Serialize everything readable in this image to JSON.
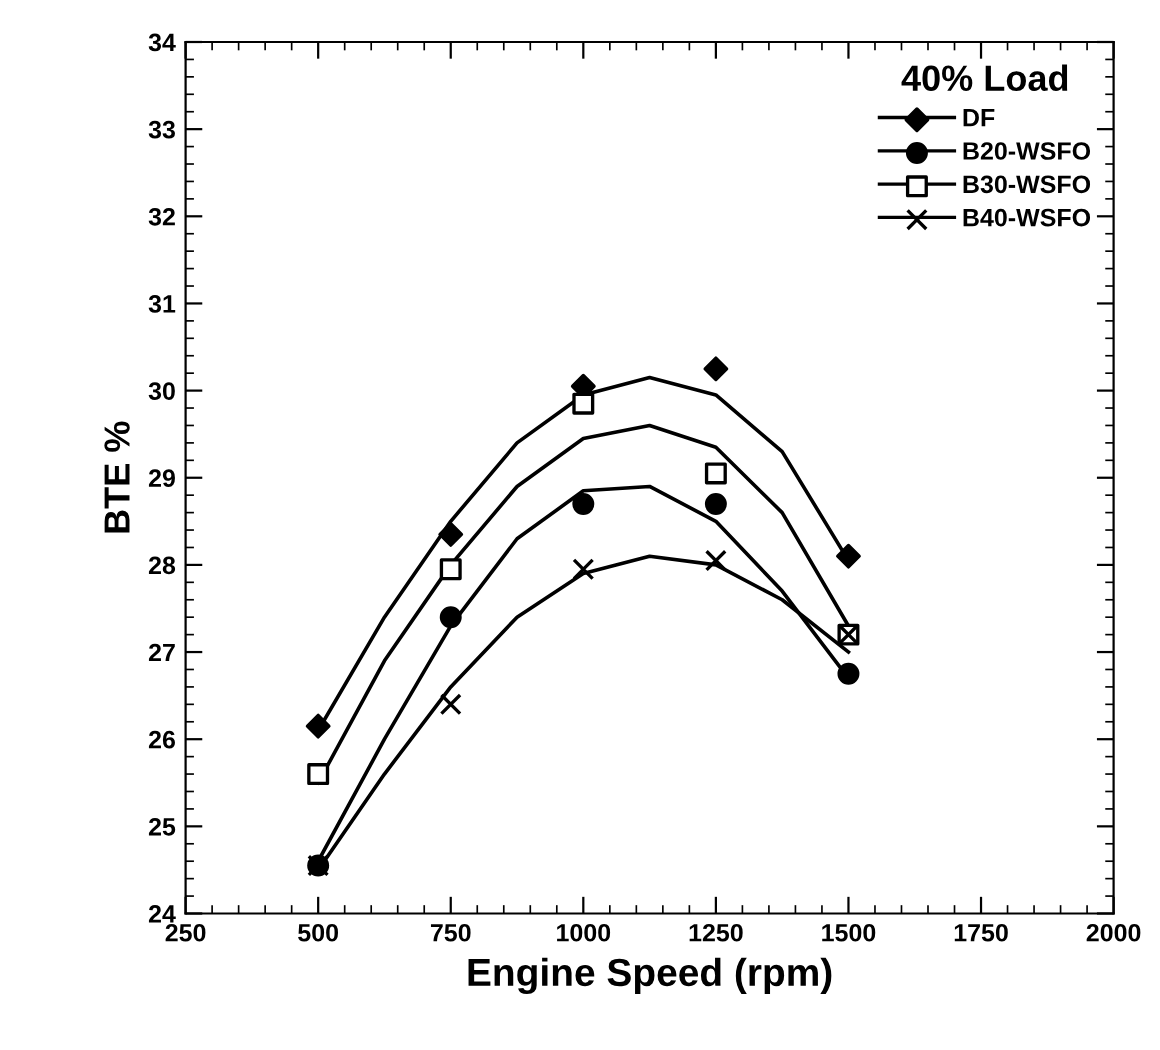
{
  "chart_data": {
    "type": "scatter",
    "xlabel": "Engine Speed (rpm)",
    "ylabel": "BTE %",
    "legend_title": "40% Load",
    "legend": "top right",
    "grid": false,
    "xlim": [
      250,
      2000
    ],
    "xticks": [
      250,
      500,
      750,
      1000,
      1250,
      1500,
      1750,
      2000
    ],
    "ylim": [
      24,
      34
    ],
    "yticks": [
      24,
      25,
      26,
      27,
      28,
      29,
      30,
      31,
      32,
      33,
      34
    ],
    "x": [
      500,
      750,
      1000,
      1250,
      1500
    ],
    "series": [
      {
        "name": "DF",
        "color": "#000000",
        "marker": "diamond",
        "values": [
          26.15,
          28.35,
          30.05,
          30.25,
          28.1
        ]
      },
      {
        "name": "B20-WSFO",
        "color": "#000000",
        "marker": "circle",
        "values": [
          24.55,
          27.4,
          28.7,
          28.7,
          26.75
        ]
      },
      {
        "name": "B30-WSFO",
        "color": "#000000",
        "marker": "square",
        "values": [
          25.6,
          27.95,
          29.85,
          29.05,
          27.2
        ]
      },
      {
        "name": "B40-WSFO",
        "color": "#000000",
        "marker": "cross",
        "values": [
          24.55,
          26.4,
          27.95,
          28.05,
          27.2
        ]
      },
      {
        "type": "line",
        "color": "#000000",
        "x": [
          500,
          625,
          750,
          875,
          1000,
          1125,
          1250,
          1375,
          1500
        ],
        "values": [
          26.1,
          27.4,
          28.5,
          29.4,
          29.95,
          30.15,
          29.95,
          29.3,
          28.05
        ]
      },
      {
        "type": "line",
        "color": "#000000",
        "x": [
          500,
          625,
          750,
          875,
          1000,
          1125,
          1250,
          1375,
          1500
        ],
        "values": [
          24.6,
          26.0,
          27.3,
          28.3,
          28.85,
          28.9,
          28.5,
          27.7,
          26.7
        ]
      },
      {
        "type": "line",
        "color": "#000000",
        "x": [
          500,
          625,
          750,
          875,
          1000,
          1125,
          1250,
          1375,
          1500
        ],
        "values": [
          25.5,
          26.9,
          28.0,
          28.9,
          29.45,
          29.6,
          29.35,
          28.6,
          27.3
        ]
      },
      {
        "type": "line",
        "color": "#000000",
        "x": [
          500,
          625,
          750,
          875,
          1000,
          1125,
          1250,
          1375,
          1500
        ],
        "values": [
          24.5,
          25.6,
          26.6,
          27.4,
          27.9,
          28.1,
          28.0,
          27.6,
          27.0
        ]
      }
    ]
  }
}
